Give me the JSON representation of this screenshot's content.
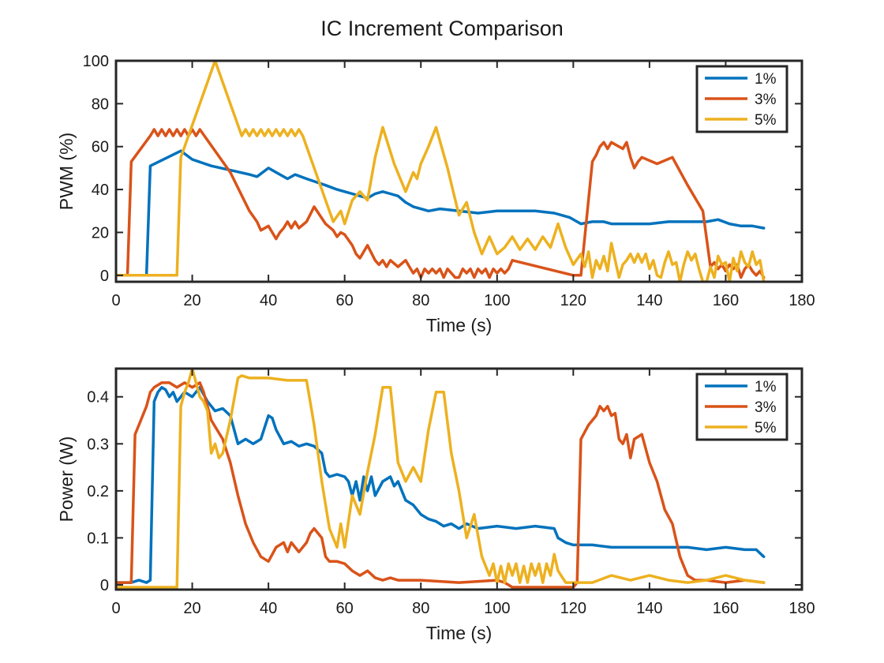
{
  "figure": {
    "title": "IC Increment Comparison"
  },
  "colors": {
    "s1": "#0072BD",
    "s2": "#D95319",
    "s3": "#EDB120"
  },
  "chart_data": [
    {
      "type": "line",
      "id": "pwm",
      "title": "",
      "xlabel": "Time (s)",
      "ylabel": "PWM (%)",
      "xlim": [
        0,
        180
      ],
      "ylim": [
        -3,
        100
      ],
      "xticks": [
        0,
        20,
        40,
        60,
        80,
        100,
        120,
        140,
        160,
        180
      ],
      "yticks": [
        0,
        20,
        40,
        60,
        80,
        100
      ],
      "xtick_labels": [
        "0",
        "20",
        "40",
        "60",
        "80",
        "100",
        "120",
        "140",
        "160",
        "180"
      ],
      "ytick_labels": [
        "0",
        "20",
        "40",
        "60",
        "80",
        "100"
      ],
      "grid": false,
      "legend": "top-right",
      "series": [
        {
          "name": "1%",
          "x": [
            0,
            2,
            3,
            8,
            9,
            17,
            20,
            25,
            30,
            35,
            37,
            40,
            42,
            45,
            47,
            50,
            55,
            58,
            60,
            62,
            64,
            66,
            68,
            70,
            72,
            74,
            76,
            78,
            80,
            82,
            85,
            90,
            95,
            100,
            105,
            110,
            115,
            119,
            122,
            125,
            128,
            130,
            135,
            140,
            145,
            150,
            155,
            158,
            161,
            164,
            167,
            170
          ],
          "y": [
            0,
            0,
            0,
            0,
            51,
            58,
            54,
            51,
            49,
            47,
            46,
            50,
            48,
            45,
            47,
            45,
            42,
            40,
            39,
            38,
            37,
            36,
            38,
            39,
            38,
            37,
            34,
            32,
            31,
            30,
            31,
            30,
            29,
            30,
            30,
            30,
            29,
            27,
            24,
            25,
            25,
            24,
            24,
            24,
            25,
            25,
            25,
            26,
            24,
            23,
            23,
            22
          ]
        },
        {
          "name": "3%",
          "x": [
            0,
            3,
            4,
            9,
            10,
            11,
            12,
            13,
            14,
            15,
            16,
            17,
            18,
            19,
            20,
            21,
            22,
            30,
            35,
            37,
            38,
            40,
            42,
            43,
            44,
            45,
            46,
            47,
            48,
            50,
            52,
            55,
            57,
            58,
            59,
            60,
            62,
            63,
            64,
            66,
            68,
            69,
            70,
            71,
            72,
            74,
            76,
            77,
            78,
            79,
            80,
            81,
            82,
            83,
            84,
            85,
            86,
            87,
            88,
            89,
            90,
            91,
            92,
            93,
            94,
            95,
            96,
            97,
            98,
            99,
            100,
            101,
            102,
            103,
            104,
            120,
            121,
            122,
            125,
            126,
            127,
            128,
            129,
            130,
            133,
            134,
            135,
            136,
            137,
            138,
            142,
            146,
            150,
            154,
            155,
            156,
            157,
            158,
            159,
            160,
            161,
            162,
            163,
            164,
            165,
            166,
            167,
            168,
            169,
            170
          ],
          "y": [
            0,
            0,
            53,
            65,
            68,
            65,
            68,
            65,
            68,
            65,
            68,
            65,
            68,
            65,
            68,
            65,
            68,
            48,
            30,
            25,
            21,
            23,
            17,
            20,
            22,
            25,
            22,
            25,
            22,
            25,
            32,
            24,
            21,
            18,
            20,
            19,
            14,
            10,
            8,
            14,
            7,
            5,
            7,
            4,
            7,
            4,
            7,
            4,
            1,
            3,
            -1,
            3,
            1,
            3,
            1,
            3,
            -1,
            3,
            1,
            -1,
            -1,
            3,
            1,
            3,
            -1,
            3,
            1,
            3,
            -1,
            3,
            1,
            3,
            1,
            3,
            7,
            0,
            0,
            0,
            53,
            56,
            60,
            62,
            59,
            62,
            59,
            62,
            55,
            50,
            53,
            55,
            52,
            55,
            42,
            30,
            17,
            4,
            6,
            3,
            5,
            2,
            5,
            3,
            5,
            -1,
            3,
            5,
            2,
            0,
            2,
            -1
          ]
        },
        {
          "name": "5%",
          "x": [
            0,
            16,
            17,
            22,
            26,
            30,
            33,
            34,
            35,
            36,
            37,
            38,
            39,
            40,
            41,
            42,
            43,
            44,
            45,
            46,
            47,
            48,
            49,
            55,
            57,
            59,
            60,
            62,
            64,
            66,
            68,
            70,
            73,
            76,
            78,
            79,
            80,
            82,
            84,
            87,
            90,
            92,
            94,
            96,
            98,
            100,
            102,
            104,
            106,
            108,
            110,
            112,
            114,
            116,
            118,
            120,
            122,
            123,
            124,
            125,
            126,
            127,
            128,
            129,
            130,
            131,
            132,
            133,
            134,
            135,
            136,
            137,
            138,
            139,
            140,
            141,
            142,
            143,
            144,
            145,
            146,
            147,
            148,
            149,
            150,
            151,
            152,
            153,
            154,
            155,
            156,
            157,
            158,
            159,
            160,
            161,
            162,
            163,
            164,
            165,
            166,
            167,
            168,
            169,
            170
          ],
          "y": [
            0,
            0,
            55,
            80,
            100,
            80,
            65,
            68,
            65,
            68,
            65,
            68,
            65,
            68,
            65,
            68,
            65,
            68,
            65,
            68,
            65,
            68,
            65,
            35,
            25,
            30,
            24,
            35,
            39,
            35,
            55,
            69,
            52,
            39,
            48,
            45,
            52,
            60,
            69,
            50,
            28,
            34,
            20,
            10,
            18,
            10,
            13,
            18,
            12,
            17,
            12,
            18,
            13,
            24,
            13,
            5,
            10,
            4,
            11,
            -1,
            7,
            3,
            9,
            2,
            15,
            7,
            -1,
            5,
            7,
            10,
            6,
            10,
            6,
            10,
            3,
            7,
            0,
            -1,
            6,
            11,
            5,
            6,
            -3,
            5,
            11,
            7,
            10,
            3,
            -3,
            -3,
            4,
            -1,
            9,
            5,
            6,
            -3,
            8,
            2,
            11,
            6,
            4,
            11,
            5,
            7,
            -3
          ]
        }
      ]
    },
    {
      "type": "line",
      "id": "power",
      "title": "",
      "xlabel": "Time (s)",
      "ylabel": "Power (W)",
      "xlim": [
        0,
        180
      ],
      "ylim": [
        -0.01,
        0.46
      ],
      "xticks": [
        0,
        20,
        40,
        60,
        80,
        100,
        120,
        140,
        160,
        180
      ],
      "yticks": [
        0,
        0.1,
        0.2,
        0.3,
        0.4
      ],
      "xtick_labels": [
        "0",
        "20",
        "40",
        "60",
        "80",
        "100",
        "120",
        "140",
        "160",
        "180"
      ],
      "ytick_labels": [
        "0",
        "0.1",
        "0.2",
        "0.3",
        "0.4"
      ],
      "grid": false,
      "legend": "top-right",
      "series": [
        {
          "name": "1%",
          "x": [
            0,
            3,
            4,
            6,
            8,
            9,
            10,
            11,
            12,
            13,
            14,
            15,
            16,
            18,
            20,
            22,
            24,
            26,
            28,
            30,
            32,
            34,
            36,
            38,
            40,
            41,
            42,
            44,
            46,
            48,
            50,
            52,
            54,
            55,
            56,
            58,
            60,
            61,
            62,
            63,
            64,
            65,
            66,
            67,
            68,
            70,
            72,
            73,
            74,
            76,
            78,
            80,
            82,
            84,
            86,
            88,
            90,
            92,
            95,
            100,
            105,
            110,
            115,
            116,
            118,
            120,
            122,
            125,
            130,
            135,
            140,
            145,
            150,
            155,
            160,
            165,
            168,
            170
          ],
          "y": [
            0.005,
            0.005,
            0.005,
            0.01,
            0.005,
            0.01,
            0.39,
            0.41,
            0.42,
            0.415,
            0.4,
            0.41,
            0.39,
            0.41,
            0.4,
            0.42,
            0.39,
            0.37,
            0.375,
            0.36,
            0.3,
            0.31,
            0.3,
            0.31,
            0.36,
            0.355,
            0.33,
            0.3,
            0.305,
            0.295,
            0.3,
            0.295,
            0.28,
            0.24,
            0.23,
            0.235,
            0.23,
            0.22,
            0.19,
            0.22,
            0.18,
            0.23,
            0.2,
            0.23,
            0.19,
            0.22,
            0.23,
            0.21,
            0.22,
            0.18,
            0.17,
            0.15,
            0.14,
            0.135,
            0.125,
            0.13,
            0.12,
            0.13,
            0.12,
            0.125,
            0.12,
            0.125,
            0.12,
            0.1,
            0.09,
            0.085,
            0.085,
            0.085,
            0.08,
            0.08,
            0.08,
            0.08,
            0.08,
            0.075,
            0.08,
            0.075,
            0.075,
            0.06
          ]
        },
        {
          "name": "3%",
          "x": [
            0,
            4,
            5,
            6,
            8,
            9,
            10,
            12,
            14,
            16,
            18,
            20,
            22,
            23,
            25,
            28,
            30,
            32,
            34,
            36,
            38,
            40,
            42,
            44,
            45,
            46,
            48,
            50,
            51,
            52,
            54,
            55,
            56,
            58,
            60,
            62,
            64,
            66,
            68,
            70,
            72,
            74,
            80,
            90,
            100,
            102,
            104,
            110,
            120,
            121,
            122,
            124,
            126,
            127,
            128,
            129,
            130,
            131,
            132,
            133,
            134,
            135,
            136,
            138,
            140,
            142,
            144,
            146,
            148,
            150,
            152,
            155,
            160,
            165,
            170
          ],
          "y": [
            0.005,
            0.005,
            0.32,
            0.34,
            0.38,
            0.41,
            0.42,
            0.43,
            0.43,
            0.42,
            0.43,
            0.42,
            0.43,
            0.41,
            0.35,
            0.31,
            0.26,
            0.19,
            0.13,
            0.09,
            0.06,
            0.05,
            0.08,
            0.09,
            0.07,
            0.09,
            0.07,
            0.09,
            0.11,
            0.12,
            0.1,
            0.06,
            0.05,
            0.05,
            0.045,
            0.03,
            0.02,
            0.03,
            0.015,
            0.01,
            0.015,
            0.01,
            0.01,
            0.005,
            0.01,
            0.005,
            -0.005,
            -0.005,
            -0.005,
            0.005,
            0.31,
            0.34,
            0.36,
            0.38,
            0.37,
            0.38,
            0.36,
            0.365,
            0.31,
            0.3,
            0.32,
            0.27,
            0.31,
            0.32,
            0.26,
            0.22,
            0.16,
            0.13,
            0.06,
            0.02,
            0.01,
            0.01,
            0.005,
            0.01,
            0.005
          ]
        },
        {
          "name": "5%",
          "x": [
            0,
            16,
            17,
            18,
            19,
            20,
            21,
            22,
            23,
            24,
            25,
            26,
            27,
            28,
            30,
            32,
            33,
            35,
            40,
            45,
            50,
            52,
            54,
            56,
            58,
            59,
            60,
            62,
            64,
            66,
            68,
            70,
            72,
            74,
            76,
            78,
            80,
            82,
            84,
            86,
            88,
            90,
            92,
            94,
            96,
            97,
            98,
            99,
            100,
            101,
            102,
            103,
            104,
            105,
            106,
            107,
            108,
            109,
            110,
            111,
            112,
            113,
            114,
            115,
            116,
            118,
            120,
            125,
            130,
            135,
            140,
            145,
            150,
            155,
            160,
            165,
            170
          ],
          "y": [
            -0.005,
            -0.005,
            0.38,
            0.41,
            0.43,
            0.46,
            0.43,
            0.4,
            0.39,
            0.37,
            0.28,
            0.3,
            0.27,
            0.28,
            0.35,
            0.44,
            0.445,
            0.44,
            0.44,
            0.435,
            0.435,
            0.34,
            0.22,
            0.12,
            0.08,
            0.13,
            0.08,
            0.19,
            0.15,
            0.24,
            0.32,
            0.42,
            0.42,
            0.26,
            0.22,
            0.25,
            0.22,
            0.33,
            0.41,
            0.41,
            0.28,
            0.2,
            0.1,
            0.15,
            0.06,
            0.04,
            0.02,
            0.045,
            0.005,
            0.04,
            0.005,
            0.045,
            0.02,
            0.045,
            0.005,
            0.04,
            0.005,
            0.045,
            0.02,
            0.045,
            0.005,
            0.045,
            0.02,
            0.065,
            0.03,
            0.005,
            0.005,
            0.005,
            0.02,
            0.01,
            0.02,
            0.01,
            0.005,
            0.01,
            0.02,
            0.01,
            0.005
          ]
        }
      ]
    }
  ]
}
